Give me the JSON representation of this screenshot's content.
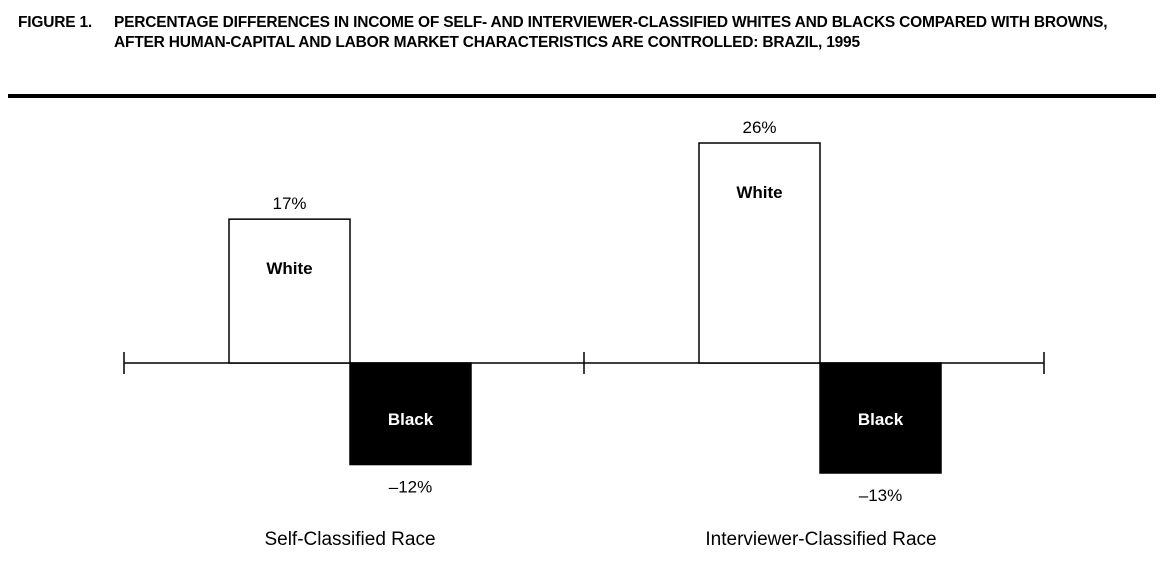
{
  "figure": {
    "label": "FIGURE 1.",
    "title": "PERCENTAGE DIFFERENCES IN INCOME OF SELF- AND INTERVIEWER-CLASSIFIED WHITES AND BLACKS COMPARED WITH BROWNS, AFTER HUMAN-CAPITAL AND LABOR MARKET CHARACTERISTICS ARE CONTROLLED: BRAZIL, 1995"
  },
  "chart_data": {
    "type": "bar",
    "title": "PERCENTAGE DIFFERENCES IN INCOME OF SELF- AND INTERVIEWER-CLASSIFIED WHITES AND BLACKS COMPARED WITH BROWNS, AFTER HUMAN-CAPITAL AND LABOR MARKET CHARACTERISTICS ARE CONTROLLED: BRAZIL, 1995",
    "categories": [
      "Self-Classified Race",
      "Interviewer-Classified Race"
    ],
    "series": [
      {
        "name": "White",
        "values": [
          17,
          26
        ],
        "labels": [
          "17%",
          "26%"
        ],
        "color": "#ffffff"
      },
      {
        "name": "Black",
        "values": [
          -12,
          -13
        ],
        "labels": [
          "–12%",
          "–13%"
        ],
        "color": "#000000"
      }
    ],
    "ylim": [
      -13,
      26
    ],
    "grid": false,
    "legend": "none"
  }
}
